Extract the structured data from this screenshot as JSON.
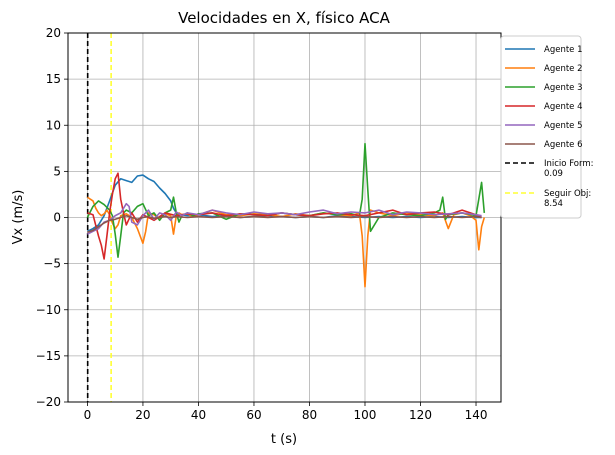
{
  "chart_data": {
    "type": "line",
    "title": "Velocidades en X, físico ACA",
    "xlabel": "t (s)",
    "ylabel": "Vx (m/s)",
    "xlim": [
      -7,
      149
    ],
    "ylim": [
      -20,
      20
    ],
    "xticks": [
      0,
      20,
      40,
      60,
      80,
      100,
      120,
      140
    ],
    "yticks": [
      -20,
      -15,
      -10,
      -5,
      0,
      5,
      10,
      15,
      20
    ],
    "xtick_labels": [
      "0",
      "20",
      "40",
      "60",
      "80",
      "100",
      "120",
      "140"
    ],
    "ytick_labels": [
      "−20",
      "−15",
      "−10",
      "−5",
      "0",
      "5",
      "10",
      "15",
      "20"
    ],
    "grid": true,
    "legend_position": "outside-right",
    "series": [
      {
        "name": "Agente 1",
        "color": "#1f77b4",
        "x": [
          0,
          2,
          4,
          6,
          8,
          10,
          12,
          14,
          16,
          18,
          20,
          22,
          24,
          26,
          28,
          30,
          31,
          32,
          34,
          36,
          40,
          45,
          50,
          55,
          60,
          65,
          70,
          75,
          80,
          85,
          90,
          95,
          100,
          105,
          110,
          115,
          120,
          125,
          130,
          135,
          140,
          142
        ],
        "y": [
          -1.5,
          -1.2,
          -0.8,
          0.2,
          1.8,
          3.5,
          4.2,
          4.0,
          3.8,
          4.5,
          4.6,
          4.2,
          3.9,
          3.2,
          2.6,
          1.8,
          1.0,
          0.5,
          0.3,
          0.2,
          0.3,
          0.1,
          0.2,
          0.0,
          0.1,
          0.2,
          0.1,
          0.0,
          0.1,
          0.0,
          0.2,
          0.1,
          0.0,
          0.1,
          0.0,
          0.1,
          0.0,
          0.1,
          0.0,
          0.1,
          0.0,
          0.0
        ]
      },
      {
        "name": "Agente 2",
        "color": "#ff7f0e",
        "x": [
          0,
          1,
          2,
          3,
          4,
          5,
          6,
          7,
          8,
          9,
          10,
          11,
          12,
          14,
          16,
          18,
          20,
          21,
          22,
          24,
          26,
          28,
          30,
          31,
          32,
          33,
          34,
          36,
          38,
          40,
          45,
          50,
          55,
          60,
          65,
          70,
          75,
          80,
          85,
          90,
          95,
          98,
          99,
          100,
          101,
          102,
          105,
          110,
          115,
          120,
          125,
          128,
          130,
          132,
          135,
          138,
          140,
          141,
          142,
          143
        ],
        "y": [
          2.2,
          2.0,
          1.8,
          1.0,
          0.5,
          0.2,
          0.4,
          0.8,
          0.3,
          -0.6,
          -1.2,
          -0.8,
          0.2,
          0.4,
          0.0,
          -1.2,
          -2.8,
          -1.5,
          0.5,
          0.3,
          -0.2,
          0.4,
          0.2,
          -1.8,
          0.2,
          0.5,
          0.3,
          0.4,
          0.1,
          0.3,
          0.8,
          0.3,
          0.2,
          0.4,
          0.3,
          0.1,
          0.4,
          0.2,
          0.5,
          0.3,
          0.2,
          0.5,
          -2.0,
          -7.5,
          -2.0,
          0.8,
          0.5,
          0.2,
          0.5,
          0.3,
          0.2,
          0.5,
          -1.2,
          0.3,
          0.5,
          0.2,
          -0.3,
          -3.5,
          -1.0,
          0.0
        ]
      },
      {
        "name": "Agente 3",
        "color": "#2ca02c",
        "x": [
          0,
          2,
          4,
          6,
          8,
          9,
          10,
          11,
          12,
          13,
          14,
          16,
          18,
          20,
          22,
          24,
          26,
          28,
          30,
          31,
          32,
          33,
          34,
          36,
          38,
          40,
          45,
          50,
          55,
          60,
          65,
          70,
          75,
          80,
          85,
          90,
          95,
          98,
          99,
          100,
          101,
          102,
          105,
          110,
          115,
          120,
          125,
          127,
          128,
          129,
          130,
          135,
          140,
          141,
          142,
          143
        ],
        "y": [
          0.0,
          1.2,
          1.8,
          1.4,
          0.8,
          0.2,
          -1.8,
          -4.3,
          -2.0,
          0.5,
          0.8,
          0.5,
          1.2,
          1.5,
          0.2,
          0.5,
          -0.3,
          0.5,
          0.8,
          2.2,
          0.5,
          -0.5,
          0.2,
          0.5,
          0.2,
          0.4,
          0.5,
          -0.2,
          0.4,
          0.3,
          0.2,
          0.5,
          0.3,
          0.2,
          0.5,
          0.3,
          0.4,
          0.2,
          2.0,
          8.0,
          3.0,
          -1.5,
          0.0,
          0.5,
          0.3,
          0.2,
          0.5,
          0.8,
          2.2,
          -0.2,
          0.3,
          0.5,
          0.2,
          2.0,
          3.8,
          0.5
        ]
      },
      {
        "name": "Agente 4",
        "color": "#d62728",
        "x": [
          0,
          2,
          4,
          5,
          6,
          7,
          8,
          9,
          10,
          11,
          12,
          13,
          14,
          16,
          18,
          20,
          24,
          28,
          32,
          36,
          40,
          45,
          50,
          55,
          60,
          65,
          70,
          75,
          80,
          85,
          90,
          95,
          100,
          105,
          110,
          115,
          120,
          125,
          130,
          135,
          140,
          142
        ],
        "y": [
          0.5,
          0.3,
          -2.0,
          -3.0,
          -4.5,
          -2.0,
          0.5,
          2.5,
          4.2,
          4.8,
          2.0,
          0.5,
          -0.8,
          0.5,
          -0.5,
          0.3,
          -0.3,
          0.5,
          0.2,
          0.4,
          0.3,
          0.5,
          0.2,
          0.4,
          0.3,
          0.2,
          0.5,
          0.3,
          0.2,
          0.4,
          0.5,
          0.3,
          0.2,
          0.5,
          0.8,
          0.3,
          0.5,
          0.6,
          0.3,
          0.8,
          0.3,
          0.0
        ]
      },
      {
        "name": "Agente 5",
        "color": "#9467bd",
        "x": [
          0,
          2,
          4,
          6,
          8,
          10,
          12,
          14,
          15,
          16,
          18,
          20,
          22,
          24,
          26,
          28,
          30,
          32,
          34,
          36,
          40,
          45,
          50,
          55,
          60,
          65,
          70,
          75,
          80,
          85,
          90,
          95,
          100,
          105,
          110,
          115,
          120,
          125,
          130,
          135,
          140,
          142
        ],
        "y": [
          -1.8,
          -1.5,
          -1.2,
          -0.5,
          -0.3,
          0.2,
          0.5,
          1.5,
          1.2,
          -0.5,
          -0.8,
          0.2,
          0.8,
          -0.2,
          0.5,
          0.3,
          -0.3,
          0.6,
          0.2,
          0.5,
          0.3,
          0.8,
          0.5,
          0.3,
          0.6,
          0.4,
          0.5,
          0.3,
          0.6,
          0.8,
          0.4,
          0.6,
          0.5,
          0.8,
          0.3,
          0.6,
          0.5,
          0.3,
          0.4,
          0.5,
          0.3,
          0.2
        ]
      },
      {
        "name": "Agente 6",
        "color": "#8c564b",
        "x": [
          0,
          2,
          4,
          6,
          8,
          10,
          12,
          14,
          16,
          18,
          20,
          22,
          24,
          26,
          28,
          30,
          32,
          36,
          40,
          45,
          50,
          55,
          60,
          65,
          70,
          75,
          80,
          85,
          90,
          95,
          100,
          105,
          110,
          115,
          120,
          125,
          130,
          135,
          140,
          142
        ],
        "y": [
          -1.6,
          -1.4,
          -1.0,
          -0.6,
          -0.3,
          -0.2,
          0.0,
          0.2,
          0.0,
          -0.2,
          0.0,
          0.1,
          -0.1,
          0.0,
          0.1,
          0.0,
          0.1,
          0.0,
          0.1,
          0.0,
          0.1,
          0.0,
          0.1,
          0.0,
          0.1,
          0.0,
          0.1,
          0.0,
          0.1,
          0.0,
          0.1,
          0.0,
          0.1,
          0.0,
          0.1,
          0.0,
          0.1,
          0.0,
          0.1,
          0.0
        ]
      }
    ],
    "vlines": [
      {
        "name": "Inicio Form:",
        "value_label": "0.09",
        "x": 0.09,
        "color": "#000000"
      },
      {
        "name": "Seguir Obj:",
        "value_label": "8.54",
        "x": 8.54,
        "color": "#ffff33"
      }
    ]
  }
}
